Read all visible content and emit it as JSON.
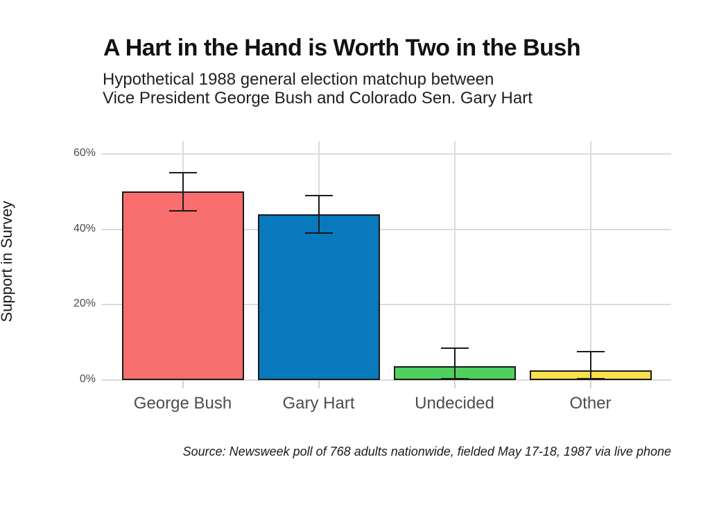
{
  "chart_data": {
    "type": "bar",
    "title": "A Hart in the Hand is Worth Two in the Bush",
    "subtitle": "Hypothetical 1988 general election matchup between\nVice President George Bush and Colorado Sen. Gary Hart",
    "ylabel": "Support in Survey",
    "xlabel": "",
    "categories": [
      "George Bush",
      "Gary Hart",
      "Undecided",
      "Other"
    ],
    "values": [
      50,
      44,
      3.7,
      2.6
    ],
    "error_low": [
      45,
      39,
      0.4,
      0.3
    ],
    "error_high": [
      55,
      49,
      8.5,
      7.5
    ],
    "yticks": [
      0,
      20,
      40,
      60
    ],
    "ytick_labels": [
      "0%",
      "20%",
      "40%",
      "60%"
    ],
    "ylim": [
      0,
      63.5
    ],
    "grid": true,
    "legend": "none",
    "bar_colors": [
      "#f96e6e",
      "#0979be",
      "#4fd15d",
      "#f9e04b"
    ],
    "bar_outline_color": "#1a1a1a",
    "gridline_color": "#dbdbdb",
    "axis_text_color": "#4d4d4d",
    "caption": "Source: Newsweek poll of 768 adults nationwide, fielded May 17-18, 1987 via live phone"
  }
}
